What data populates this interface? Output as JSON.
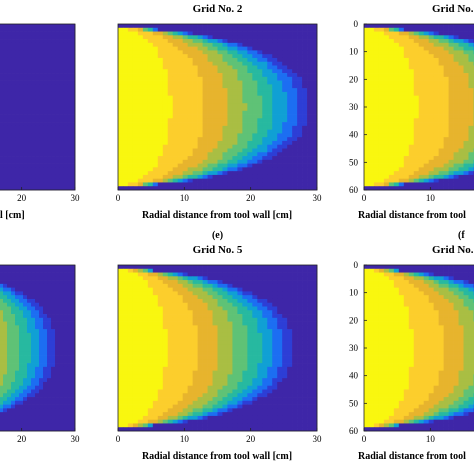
{
  "chart_data": [
    {
      "type": "heatmap",
      "title": "",
      "panel_label": "",
      "xlabel_visible": "l [cm]",
      "x_ticks": [
        "20",
        "30"
      ],
      "xlim": [
        0,
        30
      ],
      "y_ticks": [],
      "field": "shallow",
      "ylim": [
        0,
        60
      ]
    },
    {
      "type": "heatmap",
      "title": "Grid No. 2",
      "panel_label": "",
      "xlabel_visible": "Radial distance from tool wall [cm]",
      "x_ticks": [
        "0",
        "10",
        "20",
        "30"
      ],
      "xlim": [
        0,
        30
      ],
      "y_ticks": [],
      "field": "smooth",
      "ylim": [
        0,
        60
      ]
    },
    {
      "type": "heatmap",
      "title": "Grid No.",
      "panel_label": "",
      "xlabel_visible": "Radial distance from tool",
      "x_ticks": [
        "0",
        "10"
      ],
      "xlim": [
        0,
        30
      ],
      "y_ticks": [
        "0",
        "10",
        "20",
        "30",
        "40",
        "50",
        "60"
      ],
      "field": "smooth",
      "ylim": [
        0,
        60
      ]
    },
    {
      "type": "heatmap",
      "title": "",
      "panel_label": "",
      "xlabel_visible": "",
      "x_ticks": [
        "20",
        "30"
      ],
      "xlim": [
        0,
        30
      ],
      "y_ticks": [],
      "field": "banded",
      "ylim": [
        0,
        60
      ]
    },
    {
      "type": "heatmap",
      "title": "Grid No. 5",
      "panel_label": "(e)",
      "xlabel_visible": "Radial distance from tool wall [cm]",
      "x_ticks": [
        "0",
        "10",
        "20",
        "30"
      ],
      "xlim": [
        0,
        30
      ],
      "y_ticks": [],
      "field": "banded",
      "ylim": [
        0,
        60
      ]
    },
    {
      "type": "heatmap",
      "title": "Grid No.",
      "panel_label": "(f",
      "xlabel_visible": "Radial distance from tool",
      "x_ticks": [
        "0",
        "10"
      ],
      "xlim": [
        0,
        30
      ],
      "y_ticks": [
        "0",
        "10",
        "20",
        "30",
        "40",
        "50",
        "60"
      ],
      "field": "banded",
      "ylim": [
        0,
        60
      ]
    }
  ],
  "colormap": [
    "#3e26a8",
    "#2d3ed6",
    "#1c6ef2",
    "#10a0d4",
    "#27b9a0",
    "#5fc276",
    "#a9be43",
    "#e7b42d",
    "#fcce2c",
    "#f9f70f"
  ]
}
